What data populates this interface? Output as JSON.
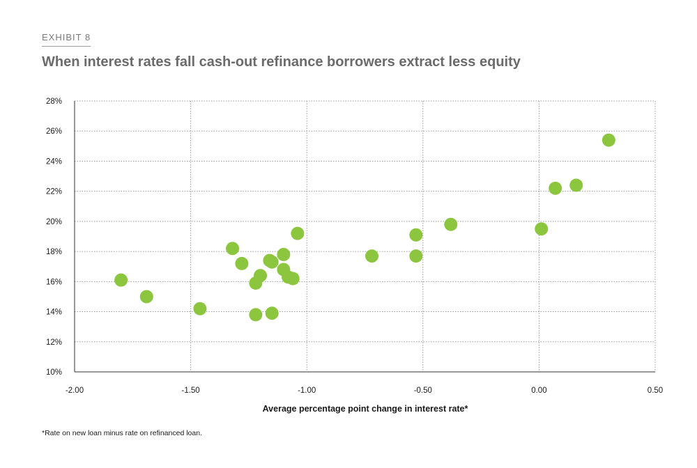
{
  "exhibit_label": "EXHIBIT 8",
  "title": "When interest rates fall cash-out refinance borrowers extract less equity",
  "footnote": "*Rate on new loan minus rate on refinanced loan.",
  "colors": {
    "point": "#8cc63f",
    "grid": "#9a9a9a",
    "axis": "#333333"
  },
  "chart_data": {
    "type": "scatter",
    "xlabel": "Average percentage point change in interest rate*",
    "ylabel": "",
    "xlim": [
      -2.0,
      0.5
    ],
    "ylim": [
      10,
      28
    ],
    "x_ticks": [
      -2.0,
      -1.5,
      -1.0,
      -0.5,
      0.0,
      0.5
    ],
    "x_tick_labels": [
      "-2.00",
      "-1.50",
      "-1.00",
      "-0.50",
      "0.00",
      "0.50"
    ],
    "y_ticks": [
      10,
      12,
      14,
      16,
      18,
      20,
      22,
      24,
      26,
      28
    ],
    "y_tick_labels": [
      "10%",
      "12%",
      "14%",
      "16%",
      "18%",
      "20%",
      "22%",
      "24%",
      "26%",
      "28%"
    ],
    "grid": true,
    "points": [
      {
        "x": -1.8,
        "y": 16.1
      },
      {
        "x": -1.69,
        "y": 15.0
      },
      {
        "x": -1.46,
        "y": 14.2
      },
      {
        "x": -1.32,
        "y": 18.2
      },
      {
        "x": -1.28,
        "y": 17.2
      },
      {
        "x": -1.22,
        "y": 13.8
      },
      {
        "x": -1.22,
        "y": 15.9
      },
      {
        "x": -1.2,
        "y": 16.4
      },
      {
        "x": -1.16,
        "y": 17.4
      },
      {
        "x": -1.15,
        "y": 17.3
      },
      {
        "x": -1.15,
        "y": 13.9
      },
      {
        "x": -1.1,
        "y": 17.8
      },
      {
        "x": -1.1,
        "y": 16.8
      },
      {
        "x": -1.08,
        "y": 16.3
      },
      {
        "x": -1.06,
        "y": 16.2
      },
      {
        "x": -1.04,
        "y": 19.2
      },
      {
        "x": -0.72,
        "y": 17.7
      },
      {
        "x": -0.53,
        "y": 19.1
      },
      {
        "x": -0.53,
        "y": 17.7
      },
      {
        "x": -0.38,
        "y": 19.8
      },
      {
        "x": 0.01,
        "y": 19.5
      },
      {
        "x": 0.07,
        "y": 22.2
      },
      {
        "x": 0.16,
        "y": 22.4
      },
      {
        "x": 0.3,
        "y": 25.4
      }
    ]
  }
}
